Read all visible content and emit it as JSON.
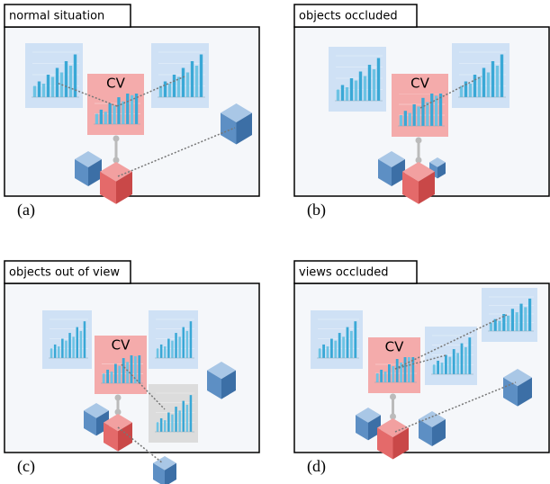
{
  "panels": [
    {
      "title": "normal situation",
      "cv_label": "CV",
      "caption": "(a)"
    },
    {
      "title": "objects occluded",
      "cv_label": "CV",
      "caption": "(b)"
    },
    {
      "title": "objects out of view",
      "cv_label": "CV",
      "caption": "(c)"
    },
    {
      "title": "views occluded",
      "cv_label": "CV",
      "caption": "(d)"
    }
  ]
}
